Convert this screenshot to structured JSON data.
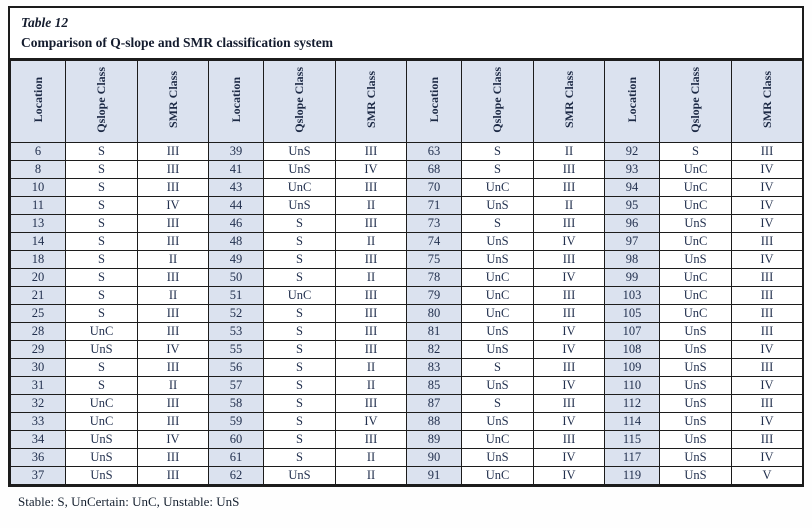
{
  "title": "Table 12",
  "subtitle": "Comparison of Q-slope and SMR classification system",
  "footnote": "Stable: S, UnCertain: UnC, Unstable: UnS",
  "colors": {
    "header_bg": "#dbe2ef",
    "location_column_bg": "#dbe2ef",
    "grid_border": "#1c1c1c",
    "text": "#22304e"
  },
  "table": {
    "column_headers": [
      "Location",
      "Qslope Class",
      "SMR Class"
    ],
    "group_count": 4,
    "rows": [
      [
        "6",
        "S",
        "III",
        "39",
        "UnS",
        "III",
        "63",
        "S",
        "II",
        "92",
        "S",
        "III"
      ],
      [
        "8",
        "S",
        "III",
        "41",
        "UnS",
        "IV",
        "68",
        "S",
        "III",
        "93",
        "UnC",
        "IV"
      ],
      [
        "10",
        "S",
        "III",
        "43",
        "UnC",
        "III",
        "70",
        "UnC",
        "III",
        "94",
        "UnC",
        "IV"
      ],
      [
        "11",
        "S",
        "IV",
        "44",
        "UnS",
        "II",
        "71",
        "UnS",
        "II",
        "95",
        "UnC",
        "IV"
      ],
      [
        "13",
        "S",
        "III",
        "46",
        "S",
        "III",
        "73",
        "S",
        "III",
        "96",
        "UnS",
        "IV"
      ],
      [
        "14",
        "S",
        "III",
        "48",
        "S",
        "II",
        "74",
        "UnS",
        "IV",
        "97",
        "UnC",
        "III"
      ],
      [
        "18",
        "S",
        "II",
        "49",
        "S",
        "III",
        "75",
        "UnS",
        "III",
        "98",
        "UnS",
        "IV"
      ],
      [
        "20",
        "S",
        "III",
        "50",
        "S",
        "II",
        "78",
        "UnC",
        "IV",
        "99",
        "UnC",
        "III"
      ],
      [
        "21",
        "S",
        "II",
        "51",
        "UnC",
        "III",
        "79",
        "UnC",
        "III",
        "103",
        "UnC",
        "III"
      ],
      [
        "25",
        "S",
        "III",
        "52",
        "S",
        "III",
        "80",
        "UnC",
        "III",
        "105",
        "UnC",
        "III"
      ],
      [
        "28",
        "UnC",
        "III",
        "53",
        "S",
        "III",
        "81",
        "UnS",
        "IV",
        "107",
        "UnS",
        "III"
      ],
      [
        "29",
        "UnS",
        "IV",
        "55",
        "S",
        "III",
        "82",
        "UnS",
        "IV",
        "108",
        "UnS",
        "IV"
      ],
      [
        "30",
        "S",
        "III",
        "56",
        "S",
        "II",
        "83",
        "S",
        "III",
        "109",
        "UnS",
        "III"
      ],
      [
        "31",
        "S",
        "II",
        "57",
        "S",
        "II",
        "85",
        "UnS",
        "IV",
        "110",
        "UnS",
        "IV"
      ],
      [
        "32",
        "UnC",
        "III",
        "58",
        "S",
        "III",
        "87",
        "S",
        "III",
        "112",
        "UnS",
        "III"
      ],
      [
        "33",
        "UnC",
        "III",
        "59",
        "S",
        "IV",
        "88",
        "UnS",
        "IV",
        "114",
        "UnS",
        "IV"
      ],
      [
        "34",
        "UnS",
        "IV",
        "60",
        "S",
        "III",
        "89",
        "UnC",
        "III",
        "115",
        "UnS",
        "III"
      ],
      [
        "36",
        "UnS",
        "III",
        "61",
        "S",
        "II",
        "90",
        "UnS",
        "IV",
        "117",
        "UnS",
        "IV"
      ],
      [
        "37",
        "UnS",
        "III",
        "62",
        "UnS",
        "II",
        "91",
        "UnC",
        "IV",
        "119",
        "UnS",
        "V"
      ]
    ]
  }
}
